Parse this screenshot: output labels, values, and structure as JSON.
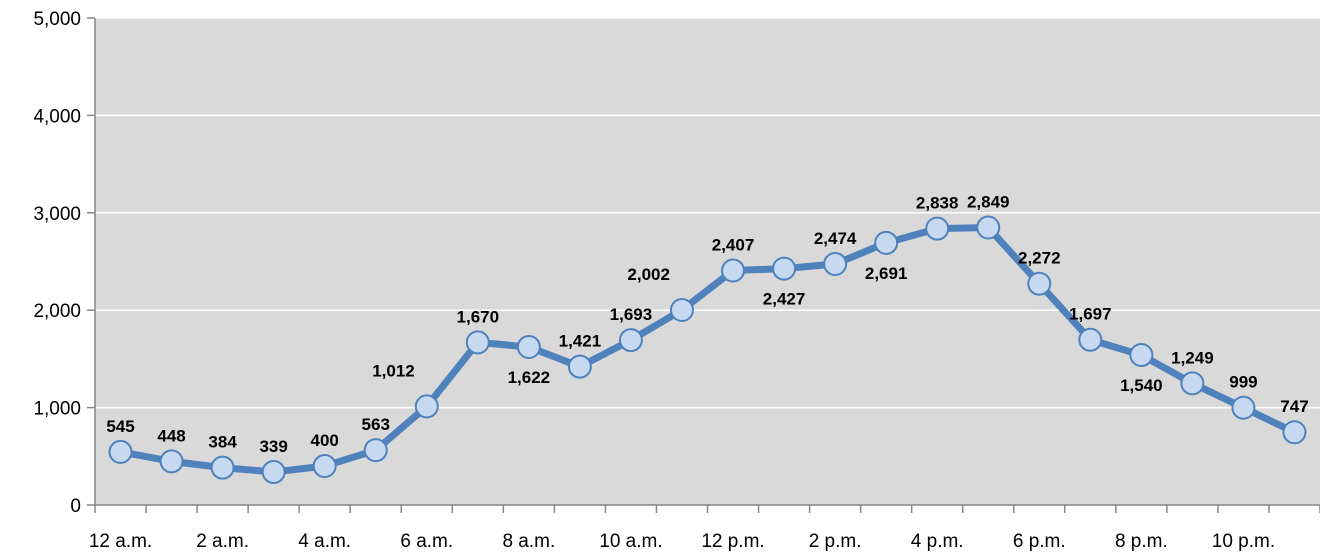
{
  "chart_data": {
    "type": "line",
    "categories": [
      "12 a.m.",
      "1 a.m.",
      "2 a.m.",
      "3 a.m.",
      "4 a.m.",
      "5 a.m.",
      "6 a.m.",
      "7 a.m.",
      "8 a.m.",
      "9 a.m.",
      "10 a.m.",
      "11 a.m.",
      "12 p.m.",
      "1 p.m.",
      "2 p.m.",
      "3 p.m.",
      "4 p.m.",
      "5 p.m.",
      "6 p.m.",
      "7 p.m.",
      "8 p.m.",
      "9 p.m.",
      "10 p.m.",
      "11 p.m."
    ],
    "x_tick_labels": [
      "12 a.m.",
      "2 a.m.",
      "4 a.m.",
      "6 a.m.",
      "8 a.m.",
      "10 a.m.",
      "12 p.m.",
      "2 p.m.",
      "4 p.m.",
      "6 p.m.",
      "8 p.m.",
      "10 p.m."
    ],
    "series": [
      {
        "values": [
          545,
          448,
          384,
          339,
          400,
          563,
          1012,
          1670,
          1622,
          1421,
          1693,
          2002,
          2407,
          2427,
          2474,
          2691,
          2838,
          2849,
          2272,
          1697,
          1540,
          1249,
          999,
          747
        ],
        "data_labels": [
          "545",
          "448",
          "384",
          "339",
          "400",
          "563",
          "1,012",
          "1,670",
          "1,622",
          "1,421",
          "1,693",
          "2,002",
          "2,407",
          "2,427",
          "2,474",
          "2,691",
          "2,838",
          "2,849",
          "2,272",
          "1,697",
          "1,540",
          "1,249",
          "999",
          "747"
        ],
        "label_positions": [
          "above",
          "above",
          "above",
          "above",
          "above",
          "above",
          "left",
          "above",
          "below",
          "above",
          "above",
          "left",
          "above",
          "below",
          "above",
          "below",
          "above",
          "above",
          "above",
          "above",
          "below",
          "above",
          "above",
          "above"
        ],
        "color": "#4F81BD",
        "marker_fill": "#C6D9F1"
      }
    ],
    "y_tick_labels": [
      "0",
      "1,000",
      "2,000",
      "3,000",
      "4,000",
      "5,000"
    ],
    "ylim": [
      0,
      5000
    ],
    "y_ticks": [
      0,
      1000,
      2000,
      3000,
      4000,
      5000
    ],
    "grid": true,
    "title": "",
    "xlabel": "",
    "ylabel": "",
    "plot_background": "#D9D9D9",
    "gridline_color": "#FFFFFF"
  }
}
